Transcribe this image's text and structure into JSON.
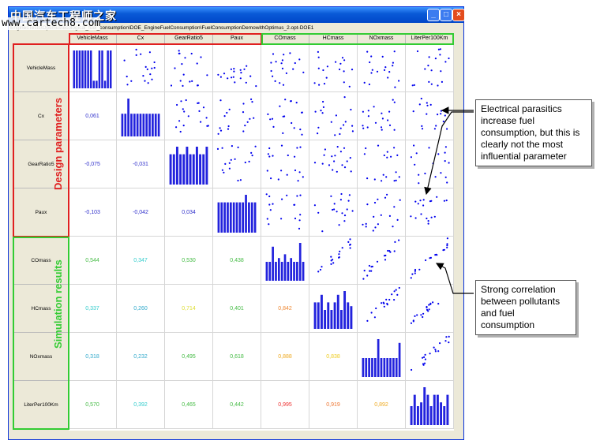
{
  "window": {
    "title": "中国汽车工程师之家",
    "path": "EnginesTests\\Optimus\\ecological_fuel_consumption\\DOE_EngineFuelConsumption\\FuelConsumptionDemowithOptimus_2.opt-DOE1",
    "watermark": "www.cartech8.com",
    "minimize_glyph": "_",
    "maximize_glyph": "□",
    "close_glyph": "×"
  },
  "matrix": {
    "variables": [
      "VehicleMass",
      "Cx",
      "GearRatio5",
      "Paux",
      "COmass",
      "HCmass",
      "NOxmass",
      "LiterPer100Km"
    ],
    "correlations": [
      {
        "row": 1,
        "col": 0,
        "value": "0,061",
        "color": "#3333cc"
      },
      {
        "row": 2,
        "col": 0,
        "value": "-0,075",
        "color": "#3333cc"
      },
      {
        "row": 2,
        "col": 1,
        "value": "-0,031",
        "color": "#3333cc"
      },
      {
        "row": 3,
        "col": 0,
        "value": "-0,103",
        "color": "#3333cc"
      },
      {
        "row": 3,
        "col": 1,
        "value": "-0,042",
        "color": "#3333cc"
      },
      {
        "row": 3,
        "col": 2,
        "value": "0,034",
        "color": "#3333cc"
      },
      {
        "row": 4,
        "col": 0,
        "value": "0,544",
        "color": "#44bb44"
      },
      {
        "row": 4,
        "col": 1,
        "value": "0,347",
        "color": "#33cccc"
      },
      {
        "row": 4,
        "col": 2,
        "value": "0,530",
        "color": "#44bb44"
      },
      {
        "row": 4,
        "col": 3,
        "value": "0,438",
        "color": "#44bb44"
      },
      {
        "row": 5,
        "col": 0,
        "value": "0,337",
        "color": "#33cccc"
      },
      {
        "row": 5,
        "col": 1,
        "value": "0,260",
        "color": "#33aacc"
      },
      {
        "row": 5,
        "col": 2,
        "value": "0,714",
        "color": "#dddd33"
      },
      {
        "row": 5,
        "col": 3,
        "value": "0,401",
        "color": "#44bb44"
      },
      {
        "row": 5,
        "col": 4,
        "value": "0,842",
        "color": "#ee8833"
      },
      {
        "row": 6,
        "col": 0,
        "value": "0,318",
        "color": "#33aacc"
      },
      {
        "row": 6,
        "col": 1,
        "value": "0,232",
        "color": "#33aacc"
      },
      {
        "row": 6,
        "col": 2,
        "value": "0,495",
        "color": "#44bb44"
      },
      {
        "row": 6,
        "col": 3,
        "value": "0,618",
        "color": "#44bb44"
      },
      {
        "row": 6,
        "col": 4,
        "value": "0,888",
        "color": "#eeaa22"
      },
      {
        "row": 6,
        "col": 5,
        "value": "0,838",
        "color": "#eecc22"
      },
      {
        "row": 7,
        "col": 0,
        "value": "0,570",
        "color": "#44bb44"
      },
      {
        "row": 7,
        "col": 1,
        "value": "0,392",
        "color": "#33cccc"
      },
      {
        "row": 7,
        "col": 2,
        "value": "0,465",
        "color": "#44bb44"
      },
      {
        "row": 7,
        "col": 3,
        "value": "0,442",
        "color": "#44bb44"
      },
      {
        "row": 7,
        "col": 4,
        "value": "0,995",
        "color": "#ee3333"
      },
      {
        "row": 7,
        "col": 5,
        "value": "0,919",
        "color": "#ee7733"
      },
      {
        "row": 7,
        "col": 6,
        "value": "0,892",
        "color": "#eeaa22"
      }
    ],
    "histograms": [
      [
        10,
        10,
        10,
        10,
        10,
        10,
        10,
        2,
        2,
        10,
        10,
        2,
        10,
        10
      ],
      [
        6,
        6,
        10,
        6,
        6,
        6,
        6,
        6,
        6,
        6,
        6,
        6,
        6
      ],
      [
        8,
        8,
        10,
        8,
        8,
        10,
        8,
        8,
        10,
        8,
        8,
        10
      ],
      [
        8,
        8,
        8,
        8,
        8,
        8,
        8,
        8,
        8,
        10,
        8,
        8,
        8
      ],
      [
        5,
        5,
        9,
        5,
        6,
        5,
        7,
        5,
        6,
        5,
        5,
        10,
        5
      ],
      [
        7,
        7,
        9,
        5,
        7,
        5,
        7,
        9,
        5,
        10,
        7,
        6
      ],
      [
        5,
        5,
        5,
        5,
        5,
        10,
        5,
        5,
        5,
        5,
        5,
        5,
        9
      ],
      [
        5,
        8,
        5,
        6,
        10,
        8,
        5,
        8,
        8,
        6,
        5,
        8
      ]
    ],
    "accent": {
      "design": "#e02020",
      "results": "#33cc33",
      "scatter": "#0000ee",
      "hist": "#2222dd"
    }
  },
  "groups": {
    "design_label": "Design parameters",
    "results_label": "Simulation results"
  },
  "callouts": [
    {
      "text": "Electrical parasitics increase fuel consumption, but this is clearly not the most influential parameter"
    },
    {
      "text": "Strong correlation between pollutants and fuel consumption"
    }
  ]
}
